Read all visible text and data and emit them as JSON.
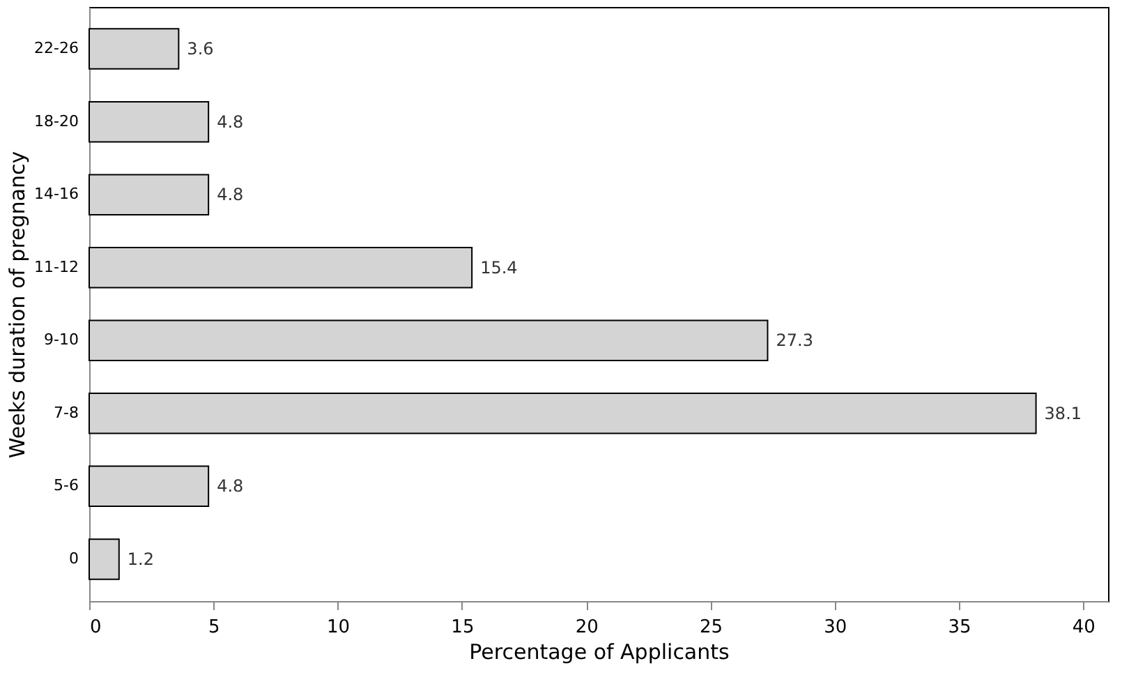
{
  "chart_data": {
    "type": "bar",
    "orientation": "horizontal",
    "xlabel": "Percentage of Applicants",
    "ylabel": "Weeks duration of pregnancy",
    "categories": [
      "22-26",
      "18-20",
      "14-16",
      "11-12",
      "9-10",
      "7-8",
      "5-6",
      "0"
    ],
    "values": [
      3.6,
      4.8,
      4.8,
      15.4,
      27.3,
      38.1,
      4.8,
      1.2
    ],
    "color": "#d4d4d4",
    "data_labels": true,
    "grid": false,
    "xlim": [
      0,
      41
    ],
    "xticks": [
      0,
      5,
      10,
      15,
      20,
      25,
      30,
      35,
      40
    ]
  }
}
